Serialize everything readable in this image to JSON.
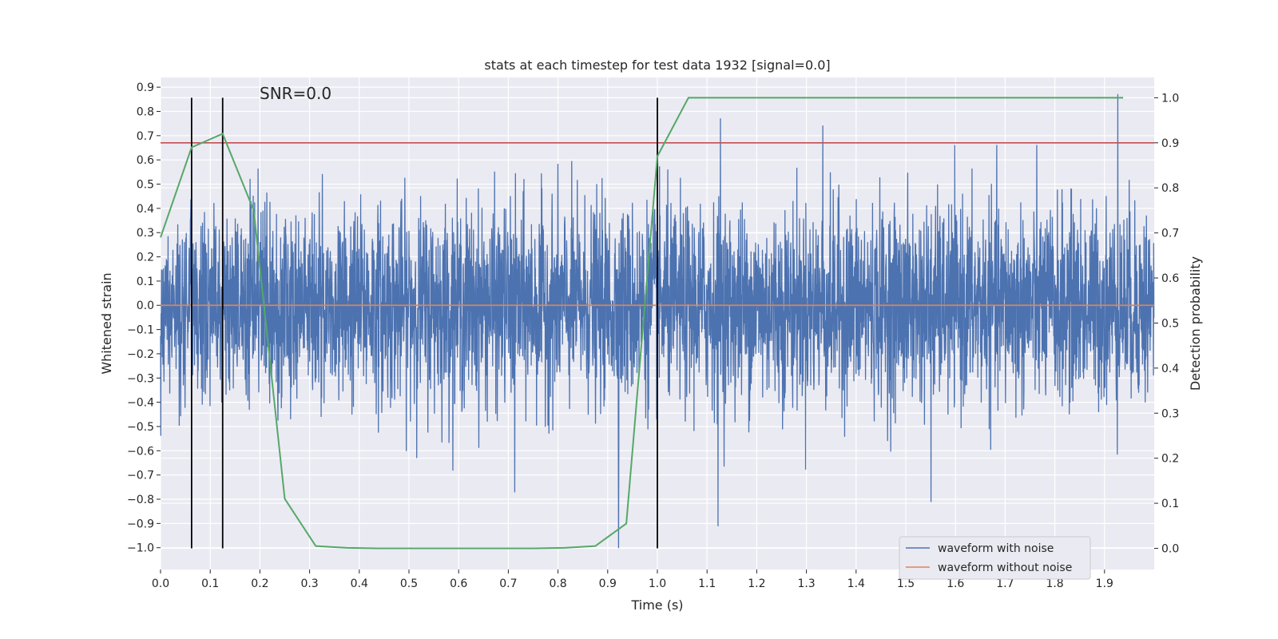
{
  "chart_data": {
    "type": "line",
    "title": "stats at each timestep for test data 1932 [signal=0.0]",
    "xlabel": "Time (s)",
    "ylabel_left": "Whitened strain",
    "ylabel_right": "Detection probability",
    "xlim": [
      0.0,
      2.0
    ],
    "ylim_left": [
      -1.09,
      0.94
    ],
    "ylim_right": [
      -0.047,
      1.045
    ],
    "x_ticks": [
      "0.0",
      "0.1",
      "0.2",
      "0.3",
      "0.4",
      "0.5",
      "0.6",
      "0.7",
      "0.8",
      "0.9",
      "1.0",
      "1.1",
      "1.2",
      "1.3",
      "1.4",
      "1.5",
      "1.6",
      "1.7",
      "1.8",
      "1.9"
    ],
    "y_ticks_left": [
      "0.9",
      "0.8",
      "0.7",
      "0.6",
      "0.5",
      "0.4",
      "0.3",
      "0.2",
      "0.1",
      "0.0",
      "−0.1",
      "−0.2",
      "−0.3",
      "−0.4",
      "−0.5",
      "−0.6",
      "−0.7",
      "−0.8",
      "−0.9",
      "−1.0"
    ],
    "y_ticks_right": [
      "1.0",
      "0.9",
      "0.8",
      "0.7",
      "0.6",
      "0.5",
      "0.4",
      "0.3",
      "0.2",
      "0.1",
      "0.0"
    ],
    "annotation": "SNR=0.0",
    "grid": true,
    "legend_position": "bottom-right",
    "series": [
      {
        "name": "waveform with noise",
        "color": "#4c72b0",
        "axis": "left",
        "sample_rate": 2048,
        "amplitude_std": 0.2,
        "notable_peaks": [
          [
            1.127,
            0.77
          ],
          [
            1.927,
            0.87
          ],
          [
            1.333,
            0.74
          ],
          [
            0.922,
            -1.0
          ],
          [
            1.122,
            -0.91
          ],
          [
            1.551,
            -0.81
          ],
          [
            0.713,
            -0.77
          ]
        ]
      },
      {
        "name": "waveform without noise",
        "color": "#dd8452",
        "axis": "left",
        "x": [
          0.0,
          2.0
        ],
        "y": [
          0.0,
          0.0
        ]
      },
      {
        "name": "Detection probability",
        "color": "#55a868",
        "axis": "right",
        "x": [
          0.0,
          0.0625,
          0.125,
          0.1875,
          0.25,
          0.3125,
          0.375,
          0.4375,
          0.5,
          0.5625,
          0.625,
          0.6875,
          0.75,
          0.8125,
          0.875,
          0.9375,
          1.0,
          1.0625,
          1.125,
          1.1875,
          1.25,
          1.3125,
          1.375,
          1.4375,
          1.5,
          1.5625,
          1.625,
          1.6875,
          1.75,
          1.8125,
          1.875,
          1.9375
        ],
        "y": [
          0.69,
          0.89,
          0.92,
          0.75,
          0.11,
          0.005,
          0.001,
          0.0,
          0.0,
          0.0,
          0.0,
          0.0,
          0.0,
          0.001,
          0.005,
          0.055,
          0.87,
          1.0,
          1.0,
          1.0,
          1.0,
          1.0,
          1.0,
          1.0,
          1.0,
          1.0,
          1.0,
          1.0,
          1.0,
          1.0,
          1.0,
          1.0
        ]
      }
    ],
    "threshold": {
      "color": "#c44e52",
      "axis": "right",
      "value": 0.9
    },
    "detection_markers": {
      "color": "#000000",
      "x": [
        0.0625,
        0.125,
        1.0
      ],
      "y_top_right": 1.0,
      "y_bottom_right": 0.0
    },
    "legend_entries": [
      {
        "label": "waveform with noise",
        "color": "#4c72b0"
      },
      {
        "label": "waveform without noise",
        "color": "#dd8452"
      }
    ]
  }
}
